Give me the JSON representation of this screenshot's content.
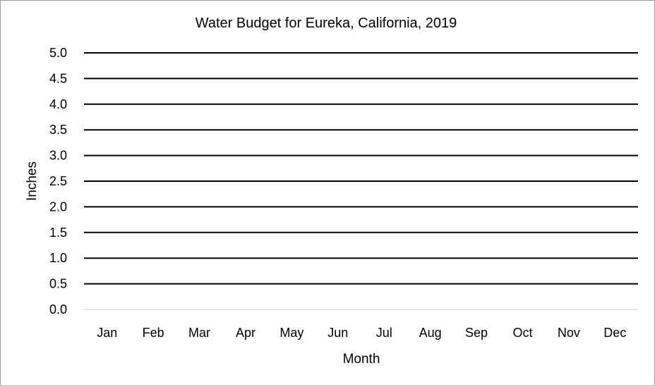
{
  "chart_data": {
    "type": "line",
    "title": "Water Budget for Eureka, California, 2019",
    "xlabel": "Month",
    "ylabel": "Inches",
    "categories": [
      "Jan",
      "Feb",
      "Mar",
      "Apr",
      "May",
      "Jun",
      "Jul",
      "Aug",
      "Sep",
      "Oct",
      "Nov",
      "Dec"
    ],
    "y_ticks": [
      "0.0",
      "0.5",
      "1.0",
      "1.5",
      "2.0",
      "2.5",
      "3.0",
      "3.5",
      "4.0",
      "4.5",
      "5.0"
    ],
    "ylim": [
      0,
      5
    ],
    "grid": true,
    "series": []
  },
  "colors": {
    "gridline": "#000000",
    "baseline": "#d9d9d9",
    "border": "#9a9a9a"
  }
}
